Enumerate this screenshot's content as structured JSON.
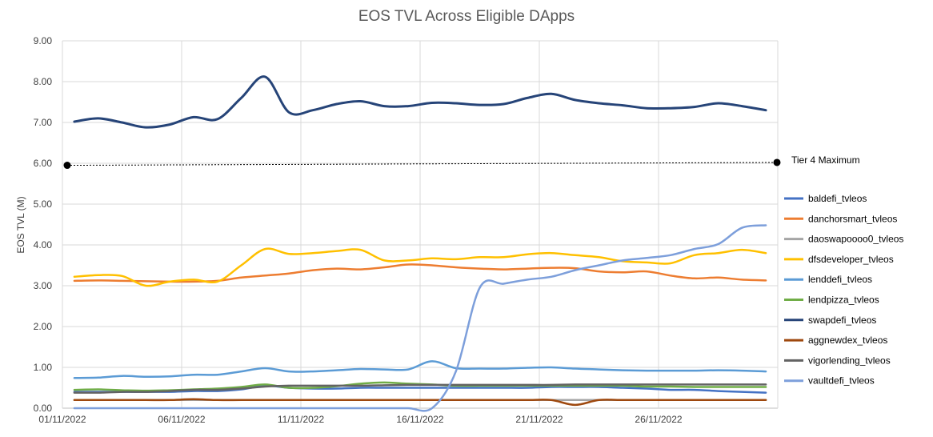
{
  "chart_data": {
    "type": "line",
    "title": "EOS TVL Across Eligible DApps",
    "xlabel": "",
    "ylabel": "EOS TVL (M)",
    "ylim": [
      0,
      9
    ],
    "yticks": [
      "0.00",
      "1.00",
      "2.00",
      "3.00",
      "4.00",
      "5.00",
      "6.00",
      "7.00",
      "8.00",
      "9.00"
    ],
    "xtick_labels": [
      "01/11/2022",
      "06/11/2022",
      "11/11/2022",
      "16/11/2022",
      "21/11/2022",
      "26/11/2022"
    ],
    "x": [
      "01/11/2022",
      "02/11/2022",
      "03/11/2022",
      "04/11/2022",
      "05/11/2022",
      "06/11/2022",
      "07/11/2022",
      "08/11/2022",
      "09/11/2022",
      "10/11/2022",
      "11/11/2022",
      "12/11/2022",
      "13/11/2022",
      "14/11/2022",
      "15/11/2022",
      "16/11/2022",
      "17/11/2022",
      "18/11/2022",
      "19/11/2022",
      "20/11/2022",
      "21/11/2022",
      "22/11/2022",
      "23/11/2022",
      "24/11/2022",
      "25/11/2022",
      "26/11/2022",
      "27/11/2022",
      "28/11/2022",
      "29/11/2022",
      "30/11/2022"
    ],
    "grid": true,
    "legend_position": "right",
    "series": [
      {
        "name": "baldefi_tvleos",
        "color": "#4472c4",
        "values": [
          0.4,
          0.4,
          0.4,
          0.4,
          0.4,
          0.42,
          0.42,
          0.46,
          0.55,
          0.5,
          0.48,
          0.48,
          0.5,
          0.5,
          0.5,
          0.5,
          0.5,
          0.5,
          0.5,
          0.5,
          0.52,
          0.52,
          0.52,
          0.5,
          0.48,
          0.45,
          0.45,
          0.42,
          0.4,
          0.38
        ]
      },
      {
        "name": "danchorsmart_tvleos",
        "color": "#ed7d31",
        "values": [
          3.12,
          3.13,
          3.12,
          3.11,
          3.1,
          3.1,
          3.12,
          3.2,
          3.25,
          3.3,
          3.38,
          3.42,
          3.4,
          3.45,
          3.52,
          3.5,
          3.45,
          3.42,
          3.4,
          3.42,
          3.44,
          3.43,
          3.35,
          3.33,
          3.35,
          3.25,
          3.18,
          3.2,
          3.15,
          3.13
        ]
      },
      {
        "name": "daoswapoooo0_tvleos",
        "color": "#a5a5a5",
        "values": [
          0.2,
          0.2,
          0.2,
          0.2,
          0.2,
          0.2,
          0.2,
          0.2,
          0.2,
          0.2,
          0.2,
          0.2,
          0.2,
          0.2,
          0.2,
          0.2,
          0.2,
          0.2,
          0.2,
          0.2,
          0.2,
          0.2,
          0.2,
          0.2,
          0.2,
          0.2,
          0.2,
          0.2,
          0.2,
          0.2
        ]
      },
      {
        "name": "dfsdeveloper_tvleos",
        "color": "#ffc000",
        "values": [
          3.22,
          3.26,
          3.24,
          3.0,
          3.1,
          3.15,
          3.1,
          3.5,
          3.9,
          3.78,
          3.8,
          3.85,
          3.88,
          3.62,
          3.62,
          3.67,
          3.65,
          3.7,
          3.7,
          3.77,
          3.8,
          3.75,
          3.7,
          3.6,
          3.57,
          3.55,
          3.75,
          3.8,
          3.88,
          3.8
        ]
      },
      {
        "name": "lenddefi_tvleos",
        "color": "#5b9bd5",
        "values": [
          0.74,
          0.75,
          0.79,
          0.77,
          0.78,
          0.82,
          0.82,
          0.9,
          0.98,
          0.9,
          0.9,
          0.93,
          0.96,
          0.95,
          0.95,
          1.15,
          0.98,
          0.97,
          0.97,
          0.99,
          1.0,
          0.97,
          0.95,
          0.93,
          0.92,
          0.92,
          0.92,
          0.93,
          0.92,
          0.9
        ]
      },
      {
        "name": "lendpizza_tvleos",
        "color": "#70ad47",
        "values": [
          0.45,
          0.46,
          0.44,
          0.43,
          0.44,
          0.46,
          0.48,
          0.52,
          0.58,
          0.5,
          0.5,
          0.54,
          0.6,
          0.63,
          0.6,
          0.58,
          0.55,
          0.55,
          0.55,
          0.55,
          0.55,
          0.55,
          0.55,
          0.55,
          0.53,
          0.53,
          0.52,
          0.52,
          0.52,
          0.52
        ]
      },
      {
        "name": "swapdefi_tvleos",
        "color": "#264478",
        "values": [
          7.02,
          7.1,
          7.0,
          6.88,
          6.95,
          7.13,
          7.08,
          7.6,
          8.12,
          7.25,
          7.3,
          7.45,
          7.52,
          7.4,
          7.4,
          7.48,
          7.47,
          7.43,
          7.45,
          7.6,
          7.7,
          7.55,
          7.47,
          7.42,
          7.35,
          7.35,
          7.38,
          7.47,
          7.4,
          7.3
        ]
      },
      {
        "name": "aggnewdex_tvleos",
        "color": "#9e480e",
        "values": [
          0.2,
          0.2,
          0.2,
          0.2,
          0.2,
          0.22,
          0.2,
          0.2,
          0.2,
          0.2,
          0.2,
          0.2,
          0.2,
          0.2,
          0.2,
          0.2,
          0.2,
          0.2,
          0.2,
          0.2,
          0.2,
          0.08,
          0.2,
          0.2,
          0.2,
          0.2,
          0.2,
          0.2,
          0.2,
          0.2
        ]
      },
      {
        "name": "vigorlending_tvleos",
        "color": "#636363",
        "values": [
          0.38,
          0.38,
          0.4,
          0.4,
          0.42,
          0.45,
          0.45,
          0.48,
          0.53,
          0.55,
          0.55,
          0.55,
          0.55,
          0.56,
          0.57,
          0.57,
          0.57,
          0.57,
          0.57,
          0.57,
          0.57,
          0.58,
          0.58,
          0.58,
          0.58,
          0.58,
          0.58,
          0.58,
          0.58,
          0.58
        ]
      },
      {
        "name": "vaultdefi_tvleos",
        "color": "#7d9fdb",
        "values": [
          0.0,
          0.0,
          0.0,
          0.0,
          0.0,
          0.0,
          0.0,
          0.0,
          0.0,
          0.0,
          0.0,
          0.0,
          0.0,
          0.0,
          0.0,
          0.0,
          0.9,
          2.95,
          3.05,
          3.15,
          3.22,
          3.38,
          3.5,
          3.62,
          3.68,
          3.75,
          3.9,
          4.02,
          4.42,
          4.48
        ]
      }
    ],
    "annotations": [
      {
        "label": "Tier 4 Maximum",
        "y_start": 5.95,
        "y_end": 6.02,
        "color": "#000000",
        "style": "dotted"
      }
    ]
  }
}
